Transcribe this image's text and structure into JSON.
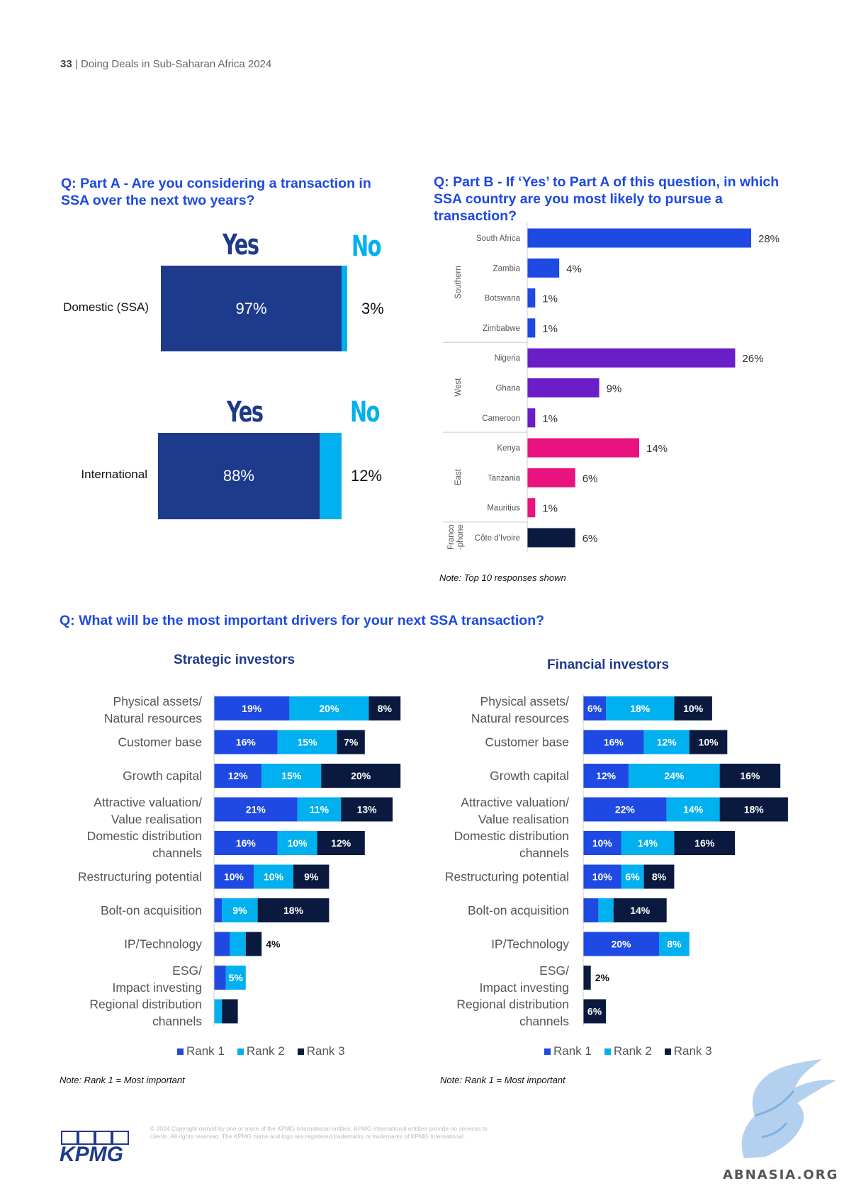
{
  "header": {
    "page_number": "33",
    "separator": "|",
    "title": "Doing Deals in Sub-Saharan Africa 2024"
  },
  "part_a": {
    "question": "Q: Part A - Are you considering a transaction in SSA over the next two years?",
    "yes_label": "Yes",
    "no_label": "No",
    "colors": {
      "yes": "#1e3a8a",
      "no": "#00b0ef"
    },
    "rows": [
      {
        "label": "Domestic (SSA)",
        "yes": 97,
        "no": 3,
        "yes_text": "97%",
        "no_text": "3%"
      },
      {
        "label": "International",
        "yes": 88,
        "no": 12,
        "yes_text": "88%",
        "no_text": "12%"
      }
    ]
  },
  "part_b": {
    "question": "Q: Part B - If ‘Yes’ to Part A of this question, in which SSA country are you most likely to pursue a transaction?",
    "note": "Note: Top 10 responses shown",
    "chart_data": {
      "type": "bar",
      "orientation": "horizontal",
      "groups": [
        {
          "name": "Southern",
          "color": "#1e49e2",
          "items": [
            {
              "country": "South Africa",
              "value": 28,
              "label": "28%"
            },
            {
              "country": "Zambia",
              "value": 4,
              "label": "4%"
            },
            {
              "country": "Botswana",
              "value": 1,
              "label": "1%"
            },
            {
              "country": "Zimbabwe",
              "value": 1,
              "label": "1%"
            }
          ]
        },
        {
          "name": "West",
          "color": "#6a1ec8",
          "items": [
            {
              "country": "Nigeria",
              "value": 26,
              "label": "26%"
            },
            {
              "country": "Ghana",
              "value": 9,
              "label": "9%"
            },
            {
              "country": "Cameroon",
              "value": 1,
              "label": "1%"
            }
          ]
        },
        {
          "name": "East",
          "color": "#e8137e",
          "items": [
            {
              "country": "Kenya",
              "value": 14,
              "label": "14%"
            },
            {
              "country": "Tanzania",
              "value": 6,
              "label": "6%"
            },
            {
              "country": "Mauritius",
              "value": 1,
              "label": "1%"
            }
          ]
        },
        {
          "name": "Franco-phone",
          "name_lines": [
            "Franco",
            "-phone"
          ],
          "color": "#0a1a3f",
          "items": [
            {
              "country": "Côte d'Ivoire",
              "value": 6,
              "label": "6%"
            }
          ]
        }
      ]
    }
  },
  "drivers": {
    "question": "Q: What will be the most important drivers for your next SSA transaction?",
    "legend": [
      "Rank 1",
      "Rank 2",
      "Rank 3"
    ],
    "rank_colors": [
      "#1e49e2",
      "#00b0ef",
      "#0a1a3f"
    ],
    "note": "Note: Rank 1 = Most important",
    "strategic": {
      "title": "Strategic investors",
      "chart_data": {
        "type": "bar",
        "stacked": true,
        "orientation": "horizontal",
        "series_names": [
          "Rank 1",
          "Rank 2",
          "Rank 3"
        ],
        "rows": [
          {
            "lines": [
              "Physical assets/",
              "Natural resources"
            ],
            "values": [
              19,
              20,
              8
            ],
            "labels": [
              "19%",
              "20%",
              "8%"
            ]
          },
          {
            "lines": [
              "Customer base"
            ],
            "values": [
              16,
              15,
              7
            ],
            "labels": [
              "16%",
              "15%",
              "7%"
            ]
          },
          {
            "lines": [
              "Growth capital"
            ],
            "values": [
              12,
              15,
              20
            ],
            "labels": [
              "12%",
              "15%",
              "20%"
            ]
          },
          {
            "lines": [
              "Attractive valuation/",
              "Value realisation"
            ],
            "values": [
              21,
              11,
              13
            ],
            "labels": [
              "21%",
              "11%",
              "13%"
            ]
          },
          {
            "lines": [
              "Domestic distribution",
              "channels"
            ],
            "values": [
              16,
              10,
              12
            ],
            "labels": [
              "16%",
              "10%",
              "12%"
            ]
          },
          {
            "lines": [
              "Restructuring potential"
            ],
            "values": [
              10,
              10,
              9
            ],
            "labels": [
              "10%",
              "10%",
              "9%"
            ]
          },
          {
            "lines": [
              "Bolt-on acquisition"
            ],
            "values": [
              2,
              9,
              18
            ],
            "labels": [
              "",
              "9%",
              "18%"
            ]
          },
          {
            "lines": [
              "IP/Technology"
            ],
            "values": [
              4,
              4,
              4
            ],
            "labels": [
              "",
              "",
              "4%"
            ]
          },
          {
            "lines": [
              "ESG/",
              "Impact investing"
            ],
            "values": [
              3,
              5,
              0
            ],
            "labels": [
              "",
              "5%",
              ""
            ]
          },
          {
            "lines": [
              "Regional distribution",
              "channels"
            ],
            "values": [
              0,
              2,
              4
            ],
            "labels": [
              "",
              "",
              ""
            ]
          }
        ]
      }
    },
    "financial": {
      "title": "Financial investors",
      "chart_data": {
        "type": "bar",
        "stacked": true,
        "orientation": "horizontal",
        "series_names": [
          "Rank 1",
          "Rank 2",
          "Rank 3"
        ],
        "rows": [
          {
            "lines": [
              "Physical assets/",
              "Natural resources"
            ],
            "values": [
              6,
              18,
              10
            ],
            "labels": [
              "6%",
              "18%",
              "10%"
            ]
          },
          {
            "lines": [
              "Customer base"
            ],
            "values": [
              16,
              12,
              10
            ],
            "labels": [
              "16%",
              "12%",
              "10%"
            ]
          },
          {
            "lines": [
              "Growth capital"
            ],
            "values": [
              12,
              24,
              16
            ],
            "labels": [
              "12%",
              "24%",
              "16%"
            ]
          },
          {
            "lines": [
              "Attractive valuation/",
              "Value realisation"
            ],
            "values": [
              22,
              14,
              18
            ],
            "labels": [
              "22%",
              "14%",
              "18%"
            ]
          },
          {
            "lines": [
              "Domestic distribution",
              "channels"
            ],
            "values": [
              10,
              14,
              16
            ],
            "labels": [
              "10%",
              "14%",
              "16%"
            ]
          },
          {
            "lines": [
              "Restructuring potential"
            ],
            "values": [
              10,
              6,
              8
            ],
            "labels": [
              "10%",
              "6%",
              "8%"
            ]
          },
          {
            "lines": [
              "Bolt-on acquisition"
            ],
            "values": [
              4,
              4,
              14
            ],
            "labels": [
              "4%",
              "",
              "14%"
            ]
          },
          {
            "lines": [
              "IP/Technology"
            ],
            "values": [
              20,
              8,
              0
            ],
            "labels": [
              "20%",
              "8%",
              ""
            ]
          },
          {
            "lines": [
              "ESG/",
              "Impact investing"
            ],
            "values": [
              0,
              0,
              2
            ],
            "labels": [
              "",
              "",
              "2%"
            ]
          },
          {
            "lines": [
              "Regional distribution",
              "channels"
            ],
            "values": [
              0,
              0,
              6
            ],
            "labels": [
              "",
              "",
              "6%"
            ]
          }
        ]
      }
    }
  },
  "footer": {
    "copyright": "© 2024 Copyright owned by one or more of the KPMG International entities. KPMG International entities provide no services to clients. All rights reserved. The KPMG name and logo are registered trademarks or trademarks of KPMG International.",
    "logo_text": "KPMG",
    "watermark_text": "ABNASIA.ORG"
  }
}
